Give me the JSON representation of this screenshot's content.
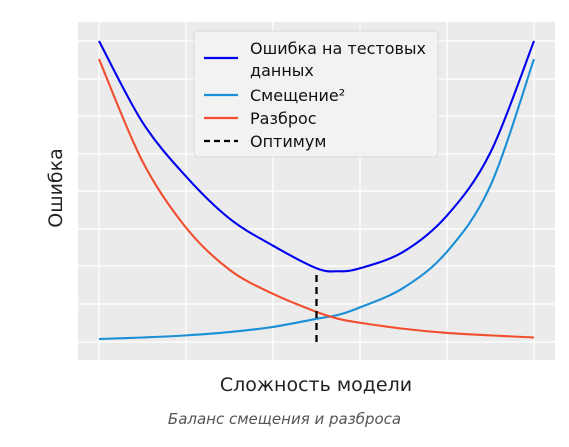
{
  "caption": "Баланс смещения и разброса",
  "chart_data": {
    "type": "line",
    "title": "",
    "xlabel": "Сложность модели",
    "ylabel": "Ошибка",
    "x_tick_labels": [],
    "y_tick_labels": [],
    "grid": true,
    "xlim": [
      0,
      1
    ],
    "ylim": [
      0,
      1
    ],
    "legend_position": "top-center",
    "series": [
      {
        "name": "Ошибка на тестовых данных",
        "color": "#0000ee",
        "x": [
          0.0,
          0.1,
          0.2,
          0.3,
          0.4,
          0.5,
          0.55,
          0.6,
          0.7,
          0.8,
          0.9,
          1.0
        ],
        "y": [
          1.0,
          0.73,
          0.55,
          0.41,
          0.32,
          0.245,
          0.235,
          0.245,
          0.3,
          0.42,
          0.63,
          1.0
        ]
      },
      {
        "name": "Смещение²",
        "color": "#1a8fd6",
        "x": [
          0.0,
          0.1,
          0.2,
          0.3,
          0.4,
          0.5,
          0.55,
          0.6,
          0.7,
          0.8,
          0.9,
          1.0
        ],
        "y": [
          0.01,
          0.015,
          0.022,
          0.033,
          0.05,
          0.077,
          0.09,
          0.115,
          0.18,
          0.3,
          0.52,
          0.94
        ]
      },
      {
        "name": "Разброс",
        "color": "#f04e2e",
        "x": [
          0.0,
          0.1,
          0.2,
          0.3,
          0.4,
          0.5,
          0.55,
          0.6,
          0.7,
          0.8,
          0.9,
          1.0
        ],
        "y": [
          0.94,
          0.6,
          0.38,
          0.24,
          0.16,
          0.1,
          0.077,
          0.064,
          0.044,
          0.03,
          0.022,
          0.015
        ]
      },
      {
        "name": "Оптимум",
        "color": "#000000",
        "style": "dashed",
        "x": [
          0.5,
          0.5
        ],
        "y": [
          0.0,
          0.235
        ]
      }
    ]
  }
}
